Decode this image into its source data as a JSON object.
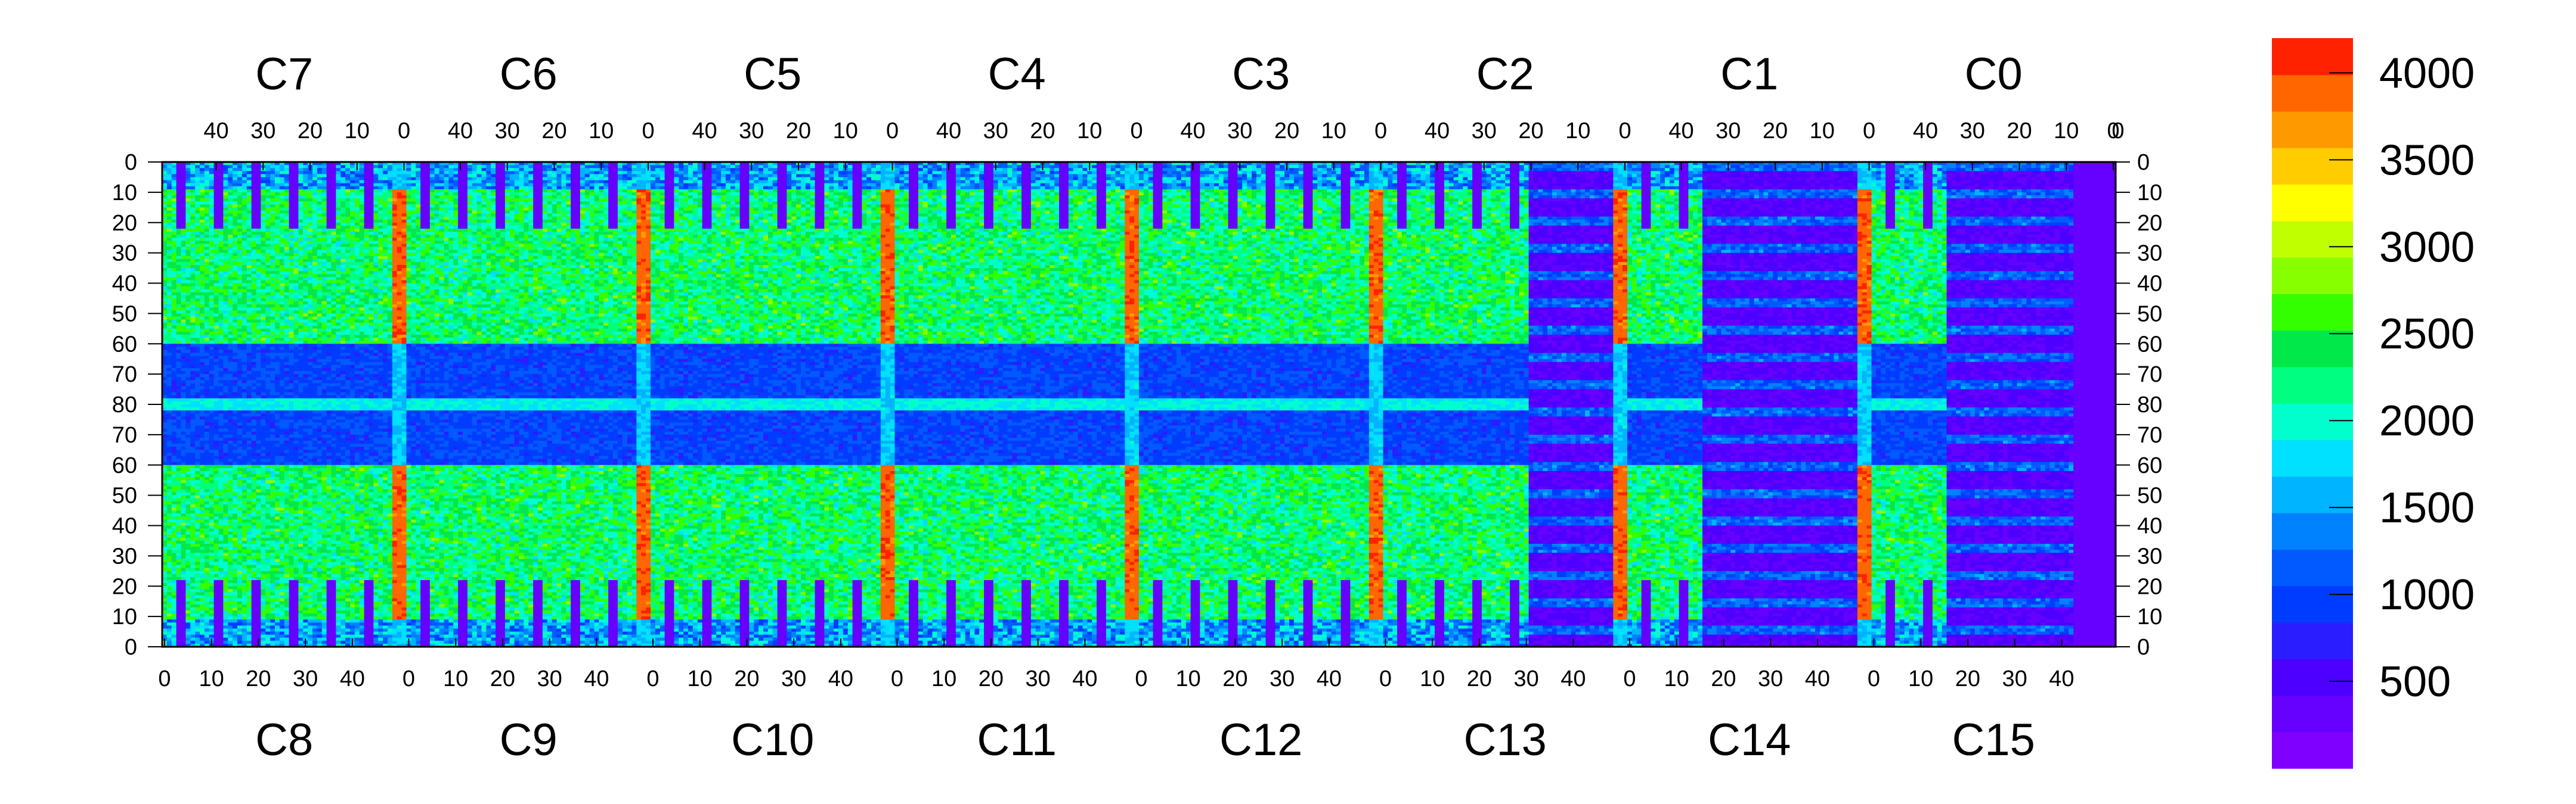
{
  "chart_data": {
    "type": "heatmap",
    "title": "",
    "xlabel": "",
    "ylabel": "",
    "top_row_titles": [
      "C7",
      "C6",
      "C5",
      "C4",
      "C3",
      "C2",
      "C1",
      "C0"
    ],
    "bottom_row_titles": [
      "C8",
      "C9",
      "C10",
      "C11",
      "C12",
      "C13",
      "C14",
      "C15"
    ],
    "panel_x_ticks_top": [
      "40",
      "30",
      "20",
      "10",
      "0"
    ],
    "panel_x_ticks_bottom": [
      "0",
      "10",
      "20",
      "30",
      "40"
    ],
    "left_y_ticks": [
      "0",
      "10",
      "20",
      "30",
      "40",
      "50",
      "60",
      "70",
      "80",
      "70",
      "60",
      "50",
      "40",
      "30",
      "20",
      "10",
      "0"
    ],
    "right_y_ticks": [
      "0",
      "10",
      "20",
      "30",
      "40",
      "50",
      "60",
      "70",
      "80",
      "70",
      "60",
      "50",
      "40",
      "30",
      "20",
      "10",
      "0"
    ],
    "channels_per_panel": 52,
    "rows": 160,
    "colorbar": {
      "min": 0,
      "max": 4200,
      "ticks": [
        "500",
        "1000",
        "1500",
        "2000",
        "2500",
        "3000",
        "3500",
        "4000"
      ],
      "palette": [
        "#7f00ff",
        "#6600ff",
        "#4d00ff",
        "#2a1dff",
        "#003cff",
        "#005aff",
        "#0082ff",
        "#00b4ff",
        "#00e0ff",
        "#00ffcc",
        "#00ff80",
        "#00e84a",
        "#33ff00",
        "#88ff00",
        "#c0ff00",
        "#ffff00",
        "#ffcc00",
        "#ff9900",
        "#ff6600",
        "#ff2200"
      ]
    },
    "features": {
      "background_level": 1500,
      "strip_level": 2300,
      "hot_column_level": 3900,
      "empty_level": 300,
      "grid": false
    }
  }
}
